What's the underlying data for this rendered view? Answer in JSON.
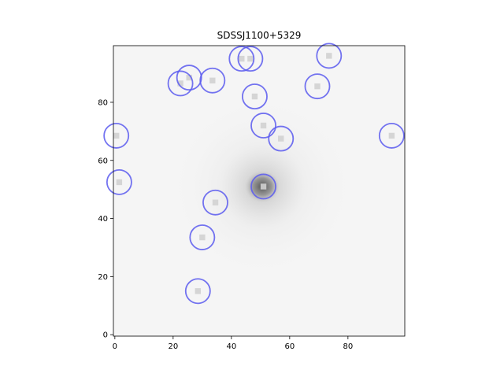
{
  "chart_data": {
    "type": "scatter",
    "title": "SDSSJ1100+5329",
    "xlabel": "",
    "ylabel": "",
    "xlim": [
      -0.5,
      99.5
    ],
    "ylim": [
      -0.5,
      99.5
    ],
    "x_ticks": [
      0,
      20,
      40,
      60,
      80
    ],
    "y_ticks": [
      0,
      20,
      40,
      60,
      80
    ],
    "grid": false,
    "legend": "none",
    "background_image": "grayscale galaxy cutout (inverted colormap)",
    "marker": "open circle",
    "marker_color": "#5a5aee",
    "galaxy_center": [
      51,
      51
    ],
    "points": [
      {
        "x": 51,
        "y": 51
      },
      {
        "x": 48,
        "y": 82
      },
      {
        "x": 51,
        "y": 72
      },
      {
        "x": 57,
        "y": 67.5
      },
      {
        "x": 0.5,
        "y": 68.5
      },
      {
        "x": 1.5,
        "y": 52.5
      },
      {
        "x": 34.5,
        "y": 45.5
      },
      {
        "x": 30,
        "y": 33.5
      },
      {
        "x": 28.5,
        "y": 15
      },
      {
        "x": 22.5,
        "y": 86.5
      },
      {
        "x": 25.5,
        "y": 88.5
      },
      {
        "x": 33.5,
        "y": 87.5
      },
      {
        "x": 43.5,
        "y": 95
      },
      {
        "x": 46.5,
        "y": 95
      },
      {
        "x": 73.5,
        "y": 96
      },
      {
        "x": 69.5,
        "y": 85.5
      },
      {
        "x": 95,
        "y": 68.5
      }
    ]
  }
}
